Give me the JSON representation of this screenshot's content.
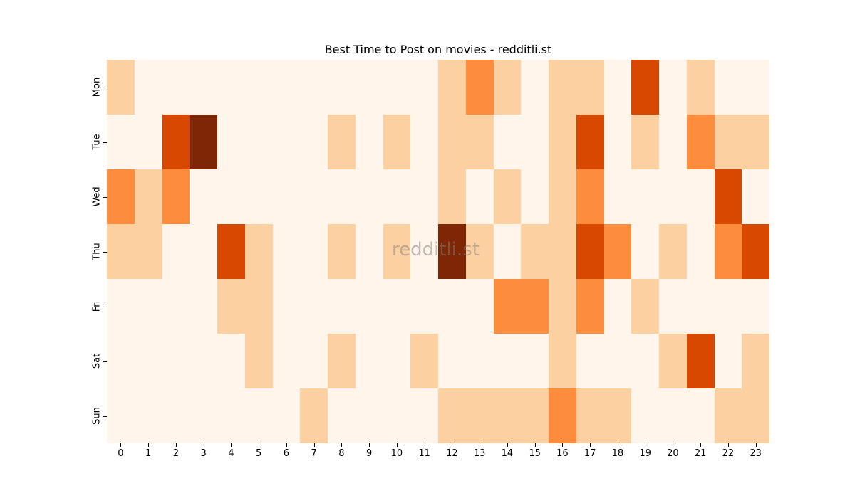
{
  "chart_data": {
    "type": "heatmap",
    "title": "Best Time to Post on movies - redditli.st",
    "xlabel": "",
    "ylabel": "",
    "x": [
      "0",
      "1",
      "2",
      "3",
      "4",
      "5",
      "6",
      "7",
      "8",
      "9",
      "10",
      "11",
      "12",
      "13",
      "14",
      "15",
      "16",
      "17",
      "18",
      "19",
      "20",
      "21",
      "22",
      "23"
    ],
    "y": [
      "Mon",
      "Tue",
      "Wed",
      "Thu",
      "Fri",
      "Sat",
      "Sun"
    ],
    "colormap": "Oranges",
    "levels": [
      "#fff5eb",
      "#fdd0a2",
      "#fd8d3c",
      "#d94801",
      "#7f2704"
    ],
    "values": [
      [
        1,
        0,
        0,
        0,
        0,
        0,
        0,
        0,
        0,
        0,
        0,
        0,
        1,
        2,
        1,
        0,
        1,
        1,
        0,
        3,
        0,
        1,
        0,
        0
      ],
      [
        0,
        0,
        3,
        4,
        0,
        0,
        0,
        0,
        1,
        0,
        1,
        0,
        1,
        1,
        0,
        0,
        1,
        3,
        0,
        1,
        0,
        2,
        1,
        1
      ],
      [
        2,
        1,
        2,
        0,
        0,
        0,
        0,
        0,
        0,
        0,
        0,
        0,
        1,
        0,
        1,
        0,
        1,
        2,
        0,
        0,
        0,
        0,
        3,
        0
      ],
      [
        1,
        1,
        0,
        0,
        3,
        1,
        0,
        0,
        1,
        0,
        1,
        0,
        4,
        1,
        0,
        1,
        1,
        3,
        2,
        0,
        1,
        0,
        2,
        3
      ],
      [
        0,
        0,
        0,
        0,
        1,
        1,
        0,
        0,
        0,
        0,
        0,
        0,
        0,
        0,
        2,
        2,
        1,
        2,
        0,
        1,
        0,
        0,
        0,
        0
      ],
      [
        0,
        0,
        0,
        0,
        0,
        1,
        0,
        0,
        1,
        0,
        0,
        1,
        0,
        0,
        0,
        0,
        1,
        0,
        0,
        0,
        1,
        3,
        0,
        1
      ],
      [
        0,
        0,
        0,
        0,
        0,
        0,
        0,
        1,
        0,
        0,
        0,
        0,
        1,
        1,
        1,
        1,
        2,
        1,
        1,
        0,
        0,
        0,
        1,
        1
      ]
    ],
    "watermark": "redditli.st"
  }
}
